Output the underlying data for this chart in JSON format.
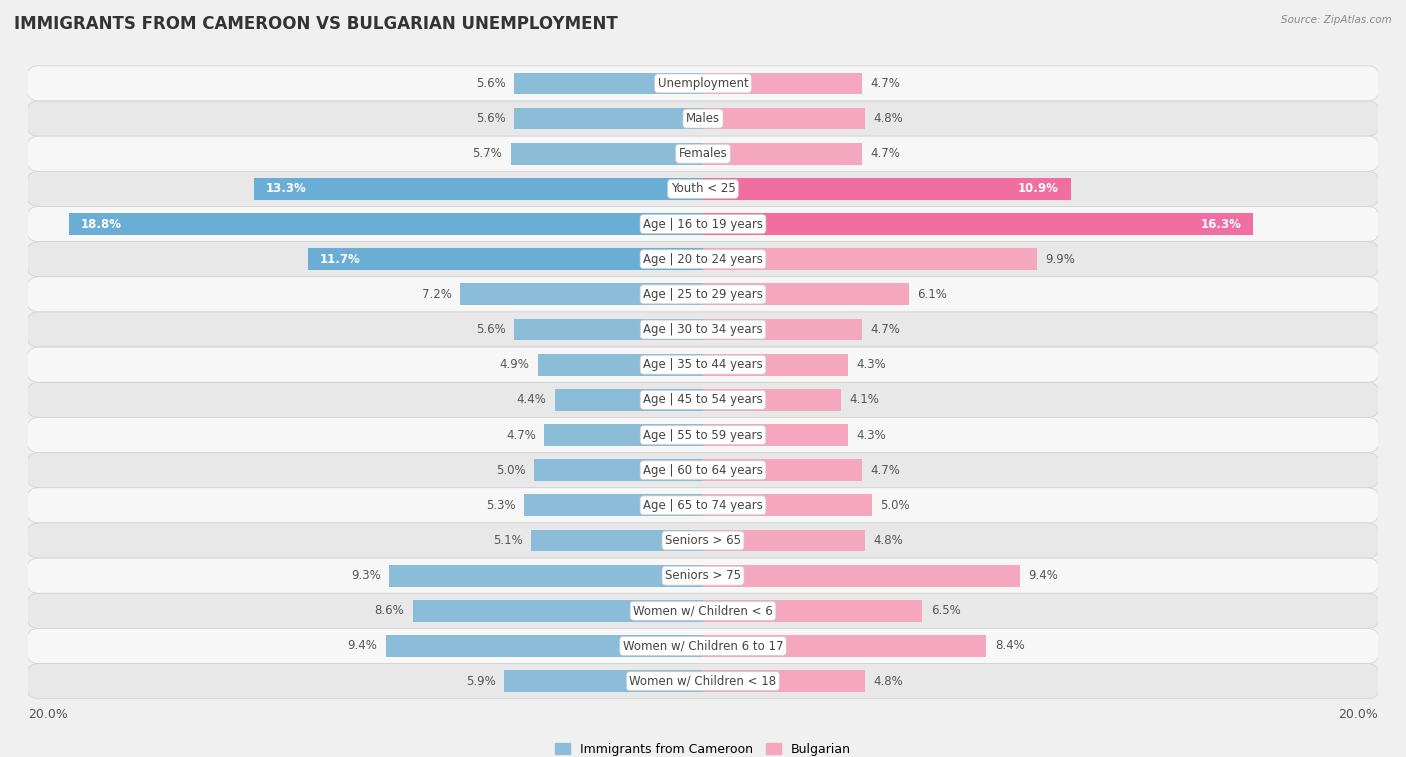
{
  "title": "IMMIGRANTS FROM CAMEROON VS BULGARIAN UNEMPLOYMENT",
  "source": "Source: ZipAtlas.com",
  "categories": [
    "Unemployment",
    "Males",
    "Females",
    "Youth < 25",
    "Age | 16 to 19 years",
    "Age | 20 to 24 years",
    "Age | 25 to 29 years",
    "Age | 30 to 34 years",
    "Age | 35 to 44 years",
    "Age | 45 to 54 years",
    "Age | 55 to 59 years",
    "Age | 60 to 64 years",
    "Age | 65 to 74 years",
    "Seniors > 65",
    "Seniors > 75",
    "Women w/ Children < 6",
    "Women w/ Children 6 to 17",
    "Women w/ Children < 18"
  ],
  "left_values": [
    5.6,
    5.6,
    5.7,
    13.3,
    18.8,
    11.7,
    7.2,
    5.6,
    4.9,
    4.4,
    4.7,
    5.0,
    5.3,
    5.1,
    9.3,
    8.6,
    9.4,
    5.9
  ],
  "right_values": [
    4.7,
    4.8,
    4.7,
    10.9,
    16.3,
    9.9,
    6.1,
    4.7,
    4.3,
    4.1,
    4.3,
    4.7,
    5.0,
    4.8,
    9.4,
    6.5,
    8.4,
    4.8
  ],
  "left_color": "#8bbdd9",
  "right_color": "#f4a7be",
  "left_color_large": "#6aaed6",
  "right_color_large": "#f06fa0",
  "axis_max": 20.0,
  "background_color": "#f0f0f0",
  "row_bg_color_odd": "#f7f7f7",
  "row_bg_color_even": "#e8e8e8",
  "title_fontsize": 12,
  "label_fontsize": 8.5,
  "value_fontsize": 8.5,
  "legend_left": "Immigrants from Cameroon",
  "legend_right": "Bulgarian",
  "large_threshold": 10.0
}
